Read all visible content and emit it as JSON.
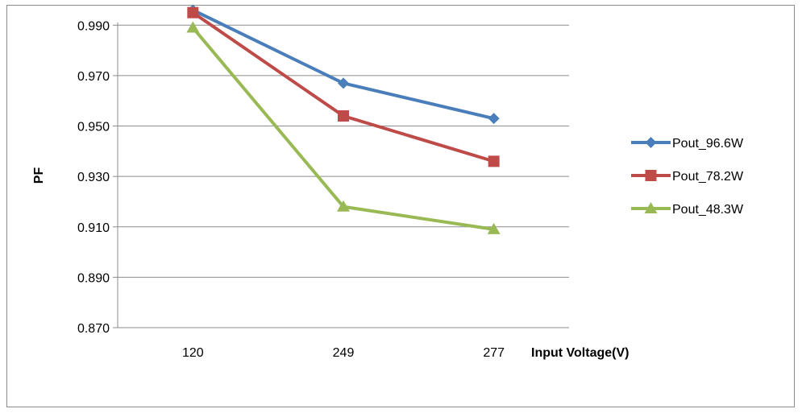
{
  "chart_data": {
    "type": "line",
    "categories": [
      "120",
      "249",
      "277"
    ],
    "xlabel": "Input Voltage(V)",
    "ylabel": "PF",
    "ylim": [
      0.87,
      1.0
    ],
    "yticks": [
      "0.870",
      "0.890",
      "0.910",
      "0.930",
      "0.950",
      "0.970",
      "0.990"
    ],
    "grid": "horizontal",
    "legend_position": "right",
    "series": [
      {
        "name": "Pout_96.6W",
        "values": [
          0.996,
          0.967,
          0.953
        ],
        "color": "#4a7ebb",
        "marker": "diamond"
      },
      {
        "name": "Pout_78.2W",
        "values": [
          0.995,
          0.954,
          0.936
        ],
        "color": "#be4b48",
        "marker": "square"
      },
      {
        "name": "Pout_48.3W",
        "values": [
          0.989,
          0.918,
          0.909
        ],
        "color": "#98b954",
        "marker": "triangle"
      }
    ]
  }
}
